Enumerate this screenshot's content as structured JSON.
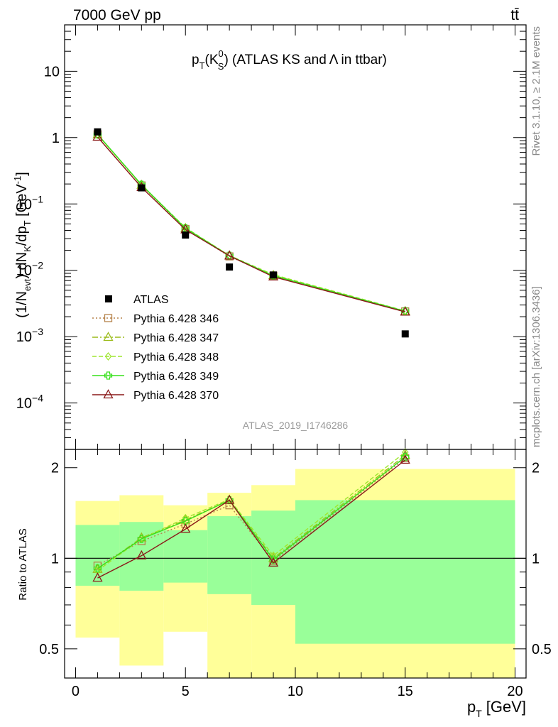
{
  "header": {
    "left": "7000 GeV pp",
    "right": "tt̄"
  },
  "side_labels": {
    "upper": "Rivet 3.1.10, ≥ 2.1M events",
    "lower": "mcplots.cern.ch [arXiv:1306.3436]"
  },
  "chart_data": [
    {
      "type": "scatter",
      "title": "p_T(K_S^0) (ATLAS KS and Λ in ttbar)",
      "title_parts": {
        "p": "p",
        "T": "T",
        "open": "(K",
        "sup": "0",
        "sub": "S",
        "rest": ") (ATLAS KS and",
        "lambda": "Λ",
        "tail": "in ttbar)"
      },
      "ylabel": "(1/N_evt) dN_K/dp_T [GeV^-1]",
      "ylabel_parts": {
        "a": "(1/N",
        "evt": "evt",
        "b": ") dN",
        "K": "K",
        "c": "/dp",
        "T": "T",
        "d": " [GeV",
        "exp": "-1",
        "e": "]"
      },
      "yscale": "log",
      "ylim": [
        2e-05,
        50
      ],
      "xlim": [
        -0.5,
        20.5
      ],
      "yticks": [
        {
          "value": 10,
          "label": "10"
        },
        {
          "value": 1,
          "label": "1"
        },
        {
          "value": 0.1,
          "base": "10",
          "exp": "−1"
        },
        {
          "value": 0.01,
          "base": "10",
          "exp": "−2"
        },
        {
          "value": 0.001,
          "base": "10",
          "exp": "−3"
        },
        {
          "value": 0.0001,
          "base": "10",
          "exp": "−4"
        }
      ],
      "watermark": "ATLAS_2019_I1746286",
      "x": [
        1,
        3,
        5,
        7,
        9,
        15
      ],
      "data": {
        "name": "ATLAS",
        "values": [
          1.22,
          0.175,
          0.034,
          0.0112,
          0.0085,
          0.0011
        ]
      },
      "series": [
        {
          "name": "Pythia 6.428 346",
          "color": "#b5824a",
          "dash": "2,3",
          "marker": "square",
          "values": [
            1.12,
            0.19,
            0.042,
            0.0162,
            0.0083,
            0.0024
          ]
        },
        {
          "name": "Pythia 6.428 347",
          "color": "#9cbc1a",
          "dash": "8,3,2,3",
          "marker": "triangle",
          "values": [
            1.11,
            0.192,
            0.043,
            0.0166,
            0.0084,
            0.0024
          ]
        },
        {
          "name": "Pythia 6.428 348",
          "color": "#9ee62e",
          "dash": "6,3",
          "marker": "diamond",
          "values": [
            1.1,
            0.193,
            0.044,
            0.0167,
            0.0086,
            0.00245
          ]
        },
        {
          "name": "Pythia 6.428 349",
          "color": "#36e01a",
          "dash": "",
          "marker": "cross",
          "values": [
            1.12,
            0.195,
            0.043,
            0.0166,
            0.0083,
            0.00242
          ]
        },
        {
          "name": "Pythia 6.428 370",
          "color": "#8a1818",
          "dash": "",
          "marker": "triangle",
          "values": [
            1.02,
            0.178,
            0.041,
            0.0165,
            0.008,
            0.00236
          ]
        }
      ]
    },
    {
      "type": "line",
      "ylabel": "Ratio to ATLAS",
      "xlabel": "p_T [GeV]",
      "xlabel_parts": {
        "p": "p",
        "T": "T",
        "unit": "[GeV]"
      },
      "yscale": "log",
      "ylim": [
        0.4,
        2.3
      ],
      "xlim": [
        -0.5,
        20.5
      ],
      "yticks": [
        0.5,
        1,
        2
      ],
      "xticks": [
        0,
        5,
        10,
        15,
        20
      ],
      "reference": 1,
      "bands": [
        {
          "x": [
            0,
            2
          ],
          "stat_lo": 0.81,
          "stat_hi": 1.29,
          "tot_lo": 0.545,
          "tot_hi": 1.55
        },
        {
          "x": [
            2,
            4
          ],
          "stat_lo": 0.78,
          "stat_hi": 1.32,
          "tot_lo": 0.44,
          "tot_hi": 1.62
        },
        {
          "x": [
            4,
            6
          ],
          "stat_lo": 0.83,
          "stat_hi": 1.24,
          "tot_lo": 0.57,
          "tot_hi": 1.5
        },
        {
          "x": [
            6,
            8
          ],
          "stat_lo": 0.76,
          "stat_hi": 1.38,
          "tot_lo": 0.37,
          "tot_hi": 1.65
        },
        {
          "x": [
            8,
            10
          ],
          "stat_lo": 0.7,
          "stat_hi": 1.44,
          "tot_lo": 0.37,
          "tot_hi": 1.75
        },
        {
          "x": [
            10,
            20
          ],
          "stat_lo": 0.52,
          "stat_hi": 1.56,
          "tot_lo": 0.37,
          "tot_hi": 1.98
        }
      ],
      "x": [
        1,
        3,
        5,
        7,
        9,
        15
      ],
      "series": [
        {
          "name": "Pythia 6.428 346",
          "values": [
            0.945,
            1.14,
            1.3,
            1.5,
            0.98,
            2.15
          ]
        },
        {
          "name": "Pythia 6.428 347",
          "values": [
            0.92,
            1.17,
            1.34,
            1.56,
            1.0,
            2.2
          ]
        },
        {
          "name": "Pythia 6.428 348",
          "values": [
            0.91,
            1.16,
            1.36,
            1.57,
            1.02,
            2.25
          ]
        },
        {
          "name": "Pythia 6.428 349",
          "values": [
            0.925,
            1.16,
            1.33,
            1.56,
            0.99,
            2.17
          ]
        },
        {
          "name": "Pythia 6.428 370",
          "values": [
            0.86,
            1.02,
            1.25,
            1.56,
            0.965,
            2.12
          ]
        }
      ]
    }
  ]
}
